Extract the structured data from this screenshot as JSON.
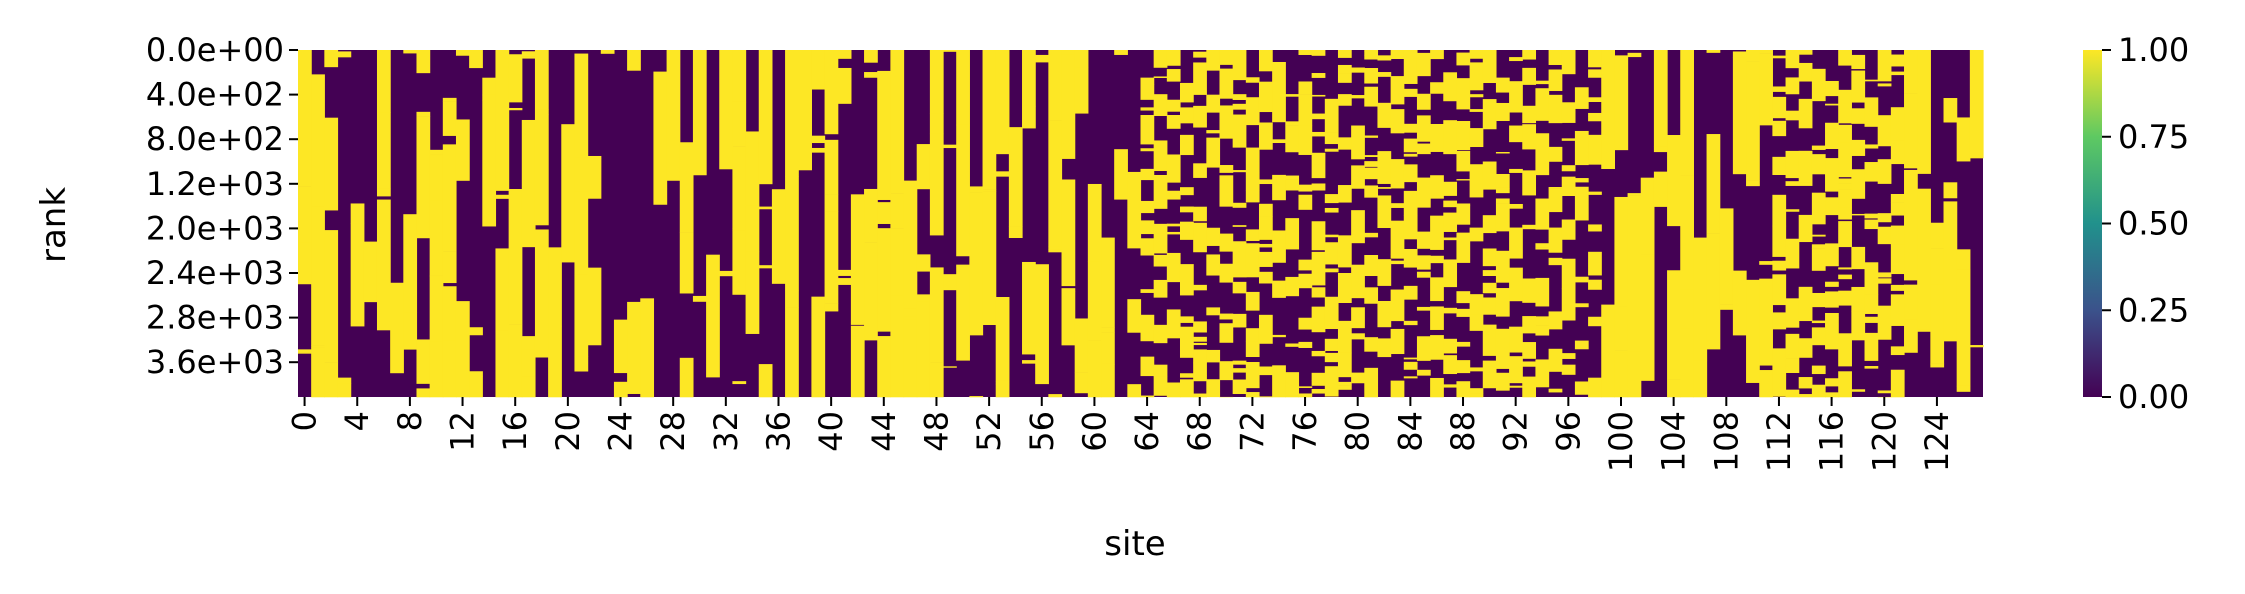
{
  "chart_data": {
    "type": "heatmap",
    "title": "",
    "xlabel": "site",
    "ylabel": "rank",
    "colormap": "viridis",
    "colors": {
      "low": "#440154",
      "high": "#fde725"
    },
    "x_tick_labels": [
      "0",
      "4",
      "8",
      "12",
      "16",
      "20",
      "24",
      "28",
      "32",
      "36",
      "40",
      "44",
      "48",
      "52",
      "56",
      "60",
      "64",
      "68",
      "72",
      "76",
      "80",
      "84",
      "88",
      "92",
      "96",
      "100",
      "104",
      "108",
      "112",
      "116",
      "120",
      "124"
    ],
    "y_tick_labels": [
      "0.0e+00",
      "4.0e+02",
      "8.0e+02",
      "1.2e+03",
      "2.0e+03",
      "2.4e+03",
      "2.8e+03",
      "3.6e+03"
    ],
    "colorbar_ticks": [
      "0.00",
      "0.25",
      "0.50",
      "0.75",
      "1.00"
    ],
    "value_range": [
      0,
      1
    ],
    "num_sites": 128,
    "num_rows": 4000,
    "column_start_values": [
      1,
      0,
      1,
      0,
      0,
      0,
      1,
      0,
      1,
      1,
      0,
      0,
      1,
      1,
      0,
      1,
      0,
      0,
      1,
      0,
      0,
      0,
      0,
      1,
      0,
      1,
      0,
      0,
      1,
      0,
      1,
      0,
      1,
      1,
      0,
      1,
      0,
      1,
      1,
      1,
      1,
      1,
      0,
      1,
      0,
      1,
      0,
      0,
      1,
      1,
      1,
      0,
      1,
      1,
      0,
      1,
      0,
      1,
      1,
      1,
      0,
      0,
      1,
      0,
      0,
      1,
      1,
      0,
      0,
      1,
      1,
      1,
      0,
      1,
      0,
      0,
      1,
      1,
      0,
      1,
      0,
      1,
      0,
      1,
      1,
      0,
      1,
      0,
      0,
      1,
      1,
      0,
      0,
      1,
      0,
      1,
      1,
      0,
      1,
      1,
      0,
      0,
      0,
      1,
      0,
      1,
      0,
      1,
      0,
      0,
      1,
      1,
      0,
      1,
      1,
      0,
      0,
      1,
      0,
      0,
      1,
      0,
      1,
      1,
      0,
      0,
      0,
      1
    ]
  }
}
